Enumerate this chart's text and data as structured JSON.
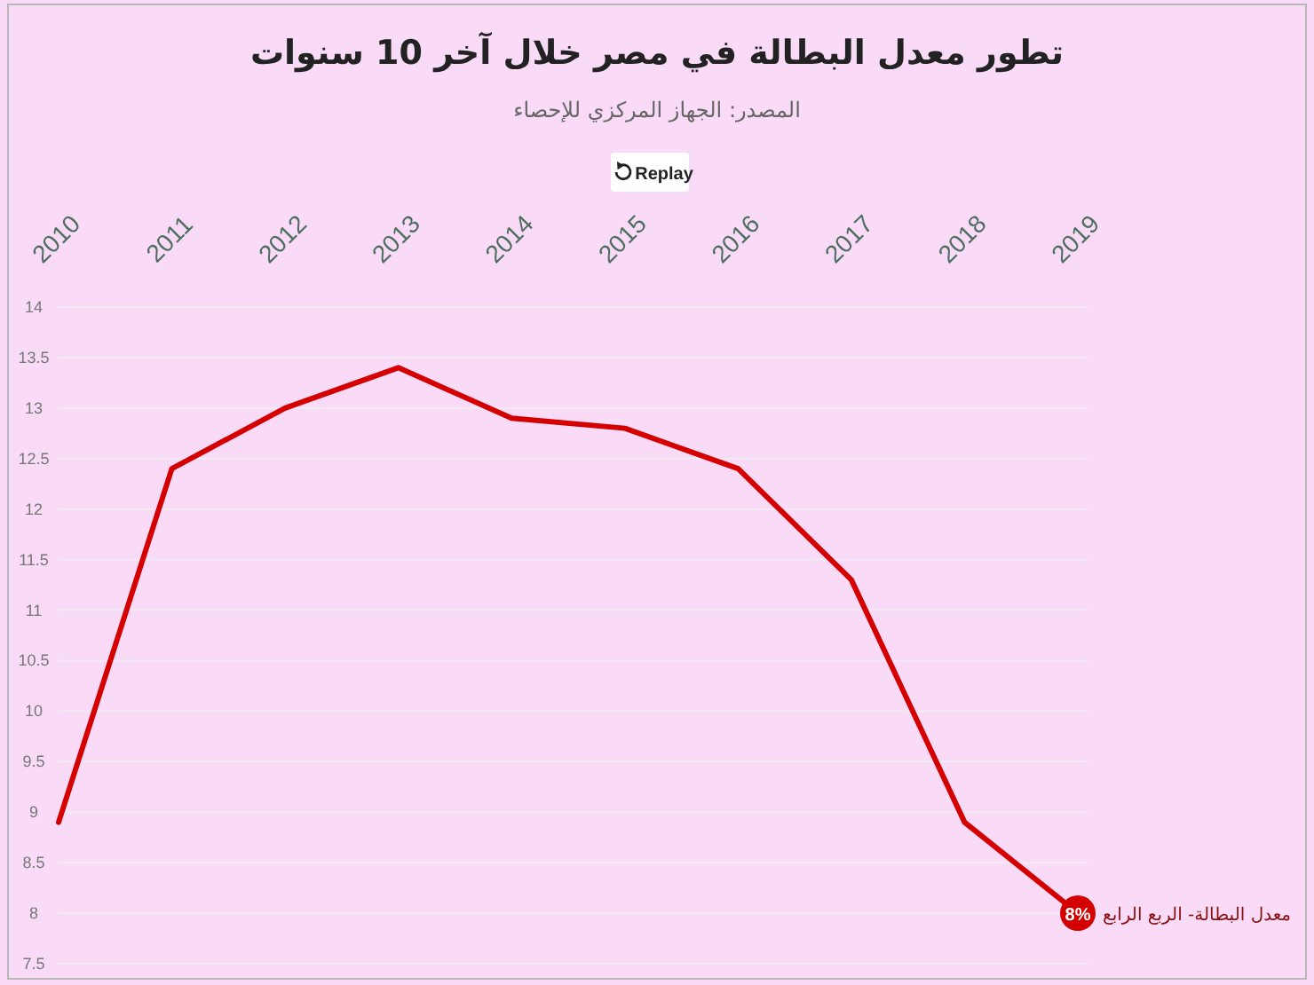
{
  "chart_data": {
    "type": "line",
    "title": "تطور معدل البطالة في مصر خلال آخر 10 سنوات",
    "subtitle": "المصدر: الجهاز المركزي للإحصاء",
    "annotations": [
      "Replay"
    ],
    "categories": [
      "2010",
      "2011",
      "2012",
      "2013",
      "2014",
      "2015",
      "2016",
      "2017",
      "2018",
      "2019"
    ],
    "series": [
      {
        "name": "معدل البطالة- الربع الرابع",
        "color": "#d40000",
        "values": [
          8.9,
          12.4,
          13.0,
          13.4,
          12.9,
          12.8,
          12.4,
          11.3,
          8.9,
          8.0
        ],
        "value_labels": [
          null,
          null,
          null,
          null,
          null,
          null,
          null,
          null,
          null,
          "8%"
        ]
      }
    ],
    "ylim": [
      7.5,
      14
    ],
    "yticks": [
      7.5,
      8,
      8.5,
      9,
      9.5,
      10,
      10.5,
      11,
      11.5,
      12,
      12.5,
      13,
      13.5,
      14
    ],
    "grid": "y",
    "legend": false,
    "marker": "none",
    "line_style": "solid"
  }
}
